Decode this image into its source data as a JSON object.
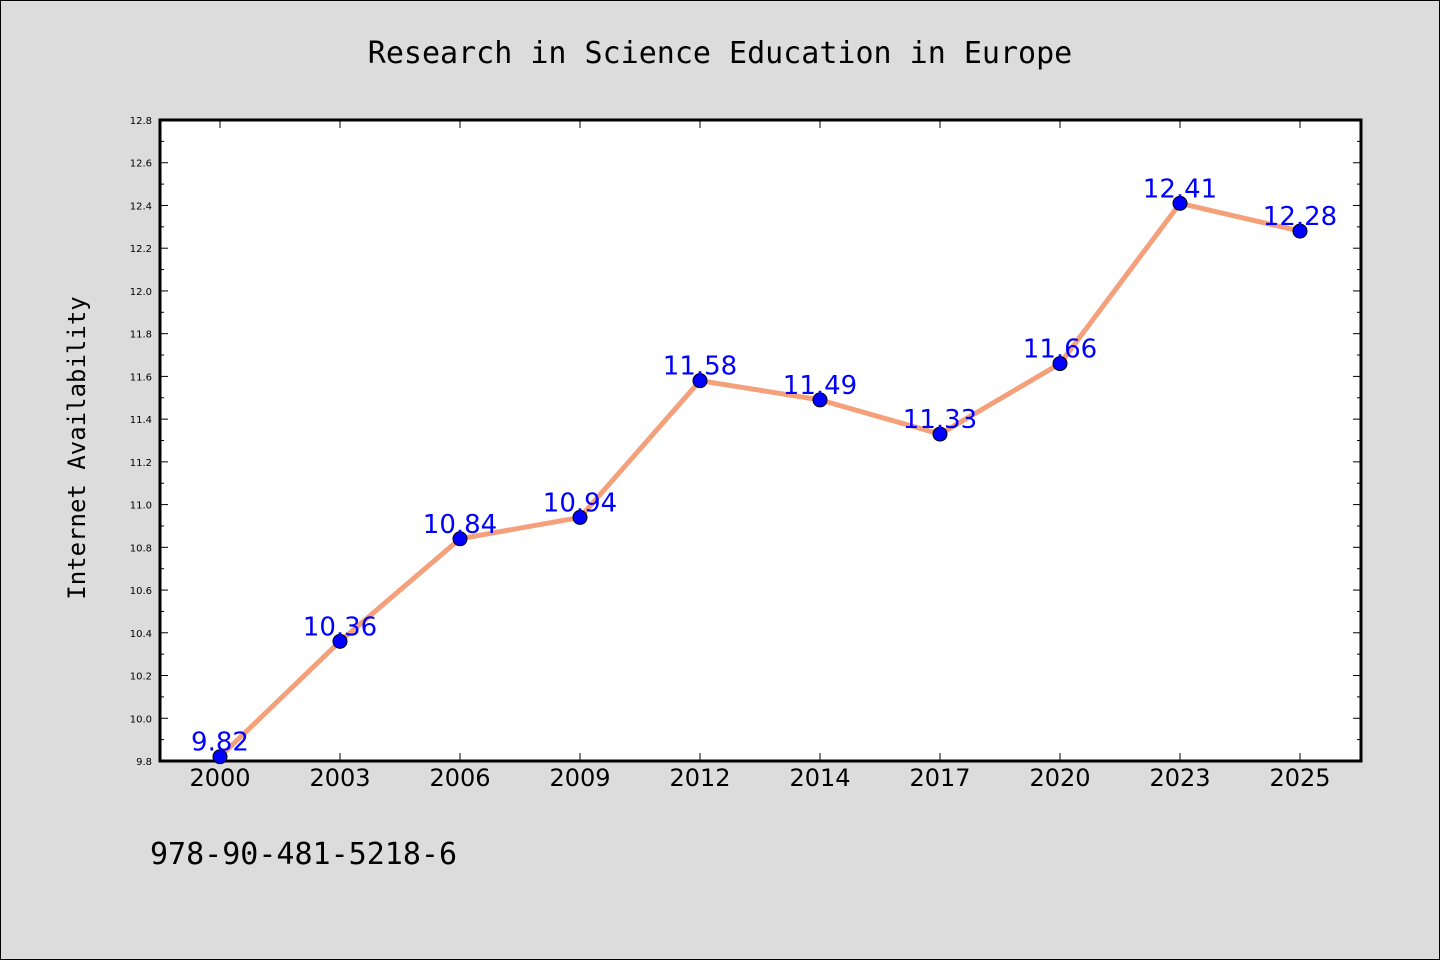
{
  "chart_data": {
    "type": "line",
    "title": "Research in Science Education in Europe",
    "xlabel": "",
    "ylabel": "Internet Availability",
    "categories": [
      "2000",
      "2003",
      "2006",
      "2009",
      "2012",
      "2014",
      "2017",
      "2020",
      "2023",
      "2025"
    ],
    "series": [
      {
        "values": [
          9.82,
          10.36,
          10.84,
          10.94,
          11.58,
          11.49,
          11.33,
          11.66,
          12.41,
          12.28
        ],
        "line_color": "#f4a07a",
        "marker_color": "#0000ff"
      }
    ],
    "data_labels": [
      "9.82",
      "10.36",
      "10.84",
      "10.94",
      "11.58",
      "11.49",
      "11.33",
      "11.66",
      "12.41",
      "12.28"
    ],
    "ylim": [
      9.8,
      12.8
    ],
    "yticks": [
      "9.8",
      "10.0",
      "10.2",
      "10.4",
      "10.6",
      "10.8",
      "11.0",
      "11.2",
      "11.4",
      "11.6",
      "11.8",
      "12.0",
      "12.2",
      "12.4",
      "12.6",
      "12.8"
    ],
    "grid": false,
    "legend": "none"
  },
  "footer": {
    "isbn": "978-90-481-5218-6"
  },
  "colors": {
    "background": "#dcdcdc",
    "plot_background": "#ffffff",
    "label_color": "#0000ff"
  }
}
